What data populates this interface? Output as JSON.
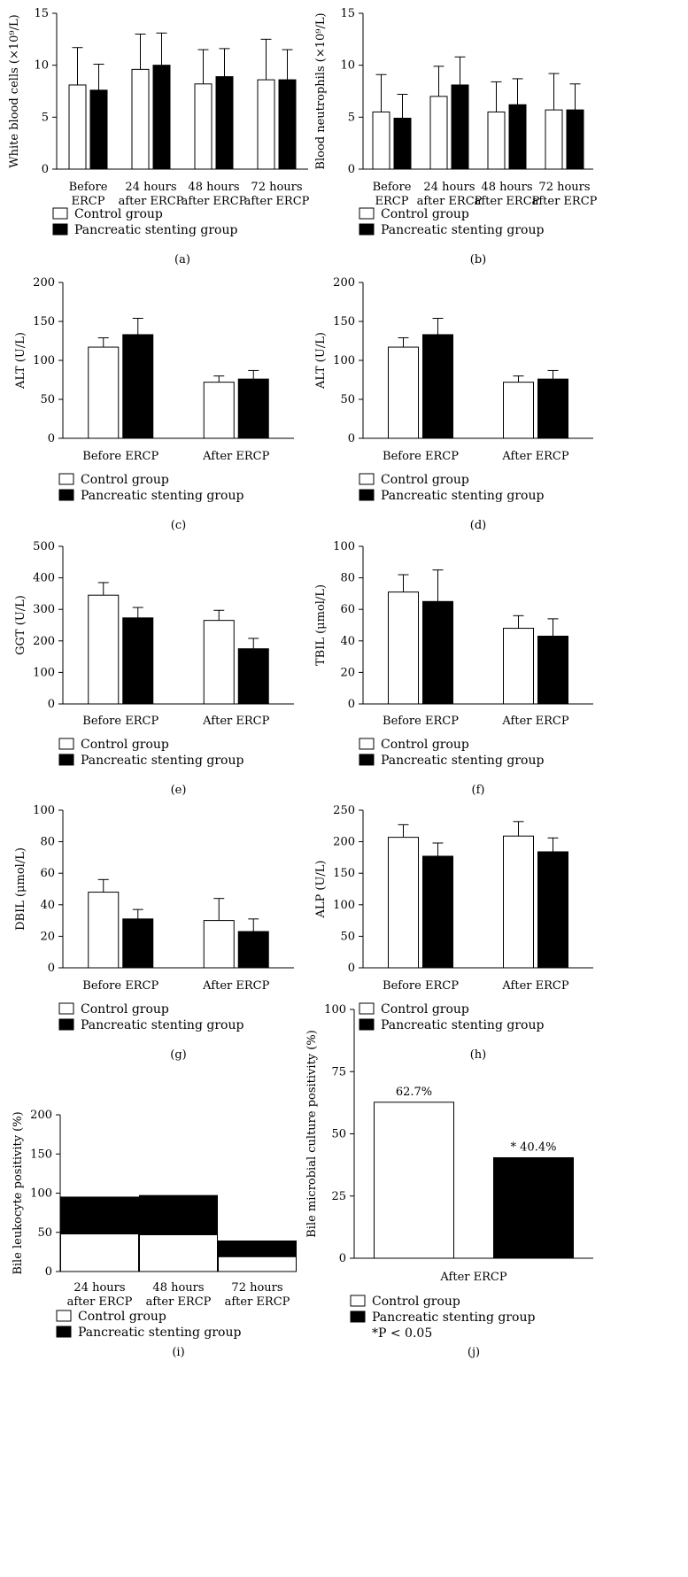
{
  "legend": {
    "control": "Control group",
    "stent": "Pancreatic stenting group",
    "pnote": "*P < 0.05"
  },
  "chart_data": [
    {
      "id": "a",
      "panel_label": "(a)",
      "type": "bar",
      "ylabel": "White blood cells (×10⁹/L)",
      "ylim": [
        0,
        15
      ],
      "yticks": [
        0,
        5,
        10,
        15
      ],
      "categories": [
        "Before ERCP",
        "24 hours after ERCP",
        "48 hours after ERCP",
        "72 hours after ERCP"
      ],
      "series": [
        {
          "name": "Control group",
          "color": "#ffffff",
          "values": [
            8.1,
            9.6,
            8.2,
            8.6
          ],
          "errors": [
            3.6,
            3.4,
            3.3,
            3.9
          ]
        },
        {
          "name": "Pancreatic stenting group",
          "color": "#000000",
          "values": [
            7.6,
            10.0,
            8.9,
            8.6
          ],
          "errors": [
            2.5,
            3.1,
            2.7,
            2.9
          ]
        }
      ]
    },
    {
      "id": "b",
      "panel_label": "(b)",
      "type": "bar",
      "ylabel": "Blood neutrophils (×10⁹/L)",
      "ylim": [
        0,
        15
      ],
      "yticks": [
        0,
        5,
        10,
        15
      ],
      "categories": [
        "Before ERCP",
        "24 hours after ERCP",
        "48 hours after ERCP",
        "72 hours after ERCP"
      ],
      "series": [
        {
          "name": "Control group",
          "color": "#ffffff",
          "values": [
            5.5,
            7.0,
            5.5,
            5.7
          ],
          "errors": [
            3.6,
            2.9,
            2.9,
            3.5
          ]
        },
        {
          "name": "Pancreatic stenting group",
          "color": "#000000",
          "values": [
            4.9,
            8.1,
            6.2,
            5.7
          ],
          "errors": [
            2.3,
            2.7,
            2.5,
            2.5
          ]
        }
      ]
    },
    {
      "id": "c",
      "panel_label": "(c)",
      "type": "bar",
      "ylabel": "ALT (U/L)",
      "ylim": [
        0,
        200
      ],
      "yticks": [
        0,
        50,
        100,
        150,
        200
      ],
      "categories": [
        "Before ERCP",
        "After ERCP"
      ],
      "series": [
        {
          "name": "Control group",
          "color": "#ffffff",
          "values": [
            117,
            72
          ],
          "errors": [
            12,
            8
          ]
        },
        {
          "name": "Pancreatic stenting group",
          "color": "#000000",
          "values": [
            133,
            76
          ],
          "errors": [
            21,
            11
          ]
        }
      ]
    },
    {
      "id": "d",
      "panel_label": "(d)",
      "type": "bar",
      "ylabel": "ALT (U/L)",
      "ylim": [
        0,
        200
      ],
      "yticks": [
        0,
        50,
        100,
        150,
        200
      ],
      "categories": [
        "Before ERCP",
        "After ERCP"
      ],
      "series": [
        {
          "name": "Control group",
          "color": "#ffffff",
          "values": [
            117,
            72
          ],
          "errors": [
            12,
            8
          ]
        },
        {
          "name": "Pancreatic stenting group",
          "color": "#000000",
          "values": [
            133,
            76
          ],
          "errors": [
            21,
            11
          ]
        }
      ]
    },
    {
      "id": "e",
      "panel_label": "(e)",
      "type": "bar",
      "ylabel": "GGT (U/L)",
      "ylim": [
        0,
        500
      ],
      "yticks": [
        0,
        100,
        200,
        300,
        400,
        500
      ],
      "categories": [
        "Before ERCP",
        "After ERCP"
      ],
      "series": [
        {
          "name": "Control group",
          "color": "#ffffff",
          "values": [
            345,
            265
          ],
          "errors": [
            40,
            32
          ]
        },
        {
          "name": "Pancreatic stenting group",
          "color": "#000000",
          "values": [
            273,
            175
          ],
          "errors": [
            33,
            33
          ]
        }
      ]
    },
    {
      "id": "f",
      "panel_label": "(f)",
      "type": "bar",
      "ylabel": "TBIL (μmol/L)",
      "ylim": [
        0,
        100
      ],
      "yticks": [
        0,
        20,
        40,
        60,
        80,
        100
      ],
      "categories": [
        "Before ERCP",
        "After ERCP"
      ],
      "series": [
        {
          "name": "Control group",
          "color": "#ffffff",
          "values": [
            71,
            48
          ],
          "errors": [
            11,
            8
          ]
        },
        {
          "name": "Pancreatic stenting group",
          "color": "#000000",
          "values": [
            65,
            43
          ],
          "errors": [
            20,
            11
          ]
        }
      ]
    },
    {
      "id": "g",
      "panel_label": "(g)",
      "type": "bar",
      "ylabel": "DBIL (μmol/L)",
      "ylim": [
        0,
        100
      ],
      "yticks": [
        0,
        20,
        40,
        60,
        80,
        100
      ],
      "categories": [
        "Before ERCP",
        "After ERCP"
      ],
      "series": [
        {
          "name": "Control group",
          "color": "#ffffff",
          "values": [
            48,
            30
          ],
          "errors": [
            8,
            14
          ]
        },
        {
          "name": "Pancreatic stenting group",
          "color": "#000000",
          "values": [
            31,
            23
          ],
          "errors": [
            6,
            8
          ]
        }
      ]
    },
    {
      "id": "h",
      "panel_label": "(h)",
      "type": "bar",
      "ylabel": "ALP (U/L)",
      "ylim": [
        0,
        250
      ],
      "yticks": [
        0,
        50,
        100,
        150,
        200,
        250
      ],
      "categories": [
        "Before ERCP",
        "After ERCP"
      ],
      "series": [
        {
          "name": "Control group",
          "color": "#ffffff",
          "values": [
            207,
            209
          ],
          "errors": [
            20,
            23
          ]
        },
        {
          "name": "Pancreatic stenting group",
          "color": "#000000",
          "values": [
            177,
            184
          ],
          "errors": [
            21,
            22
          ]
        }
      ]
    },
    {
      "id": "i",
      "panel_label": "(i)",
      "type": "stacked-bar",
      "ylabel": "Bile leukocyte positivity (%)",
      "ylim": [
        0,
        200
      ],
      "yticks": [
        0,
        50,
        100,
        150,
        200
      ],
      "categories": [
        "24 hours after ERCP",
        "48 hours after ERCP",
        "72 hours after ERCP"
      ],
      "series": [
        {
          "name": "Control group",
          "color": "#ffffff",
          "values": [
            48,
            47,
            19
          ]
        },
        {
          "name": "Pancreatic stenting group",
          "color": "#000000",
          "values": [
            47,
            50,
            20
          ]
        }
      ]
    },
    {
      "id": "j",
      "panel_label": "(j)",
      "type": "bar",
      "ylabel": "Bile microbial culture positivity (%)",
      "ylim": [
        0,
        100
      ],
      "yticks": [
        0,
        25,
        50,
        75,
        100
      ],
      "categories": [
        "After ERCP"
      ],
      "series": [
        {
          "name": "Control group",
          "color": "#ffffff",
          "values": [
            62.7
          ],
          "labels": [
            "62.7%"
          ]
        },
        {
          "name": "Pancreatic stenting group",
          "color": "#000000",
          "values": [
            40.4
          ],
          "labels": [
            "* 40.4%"
          ]
        }
      ]
    }
  ]
}
